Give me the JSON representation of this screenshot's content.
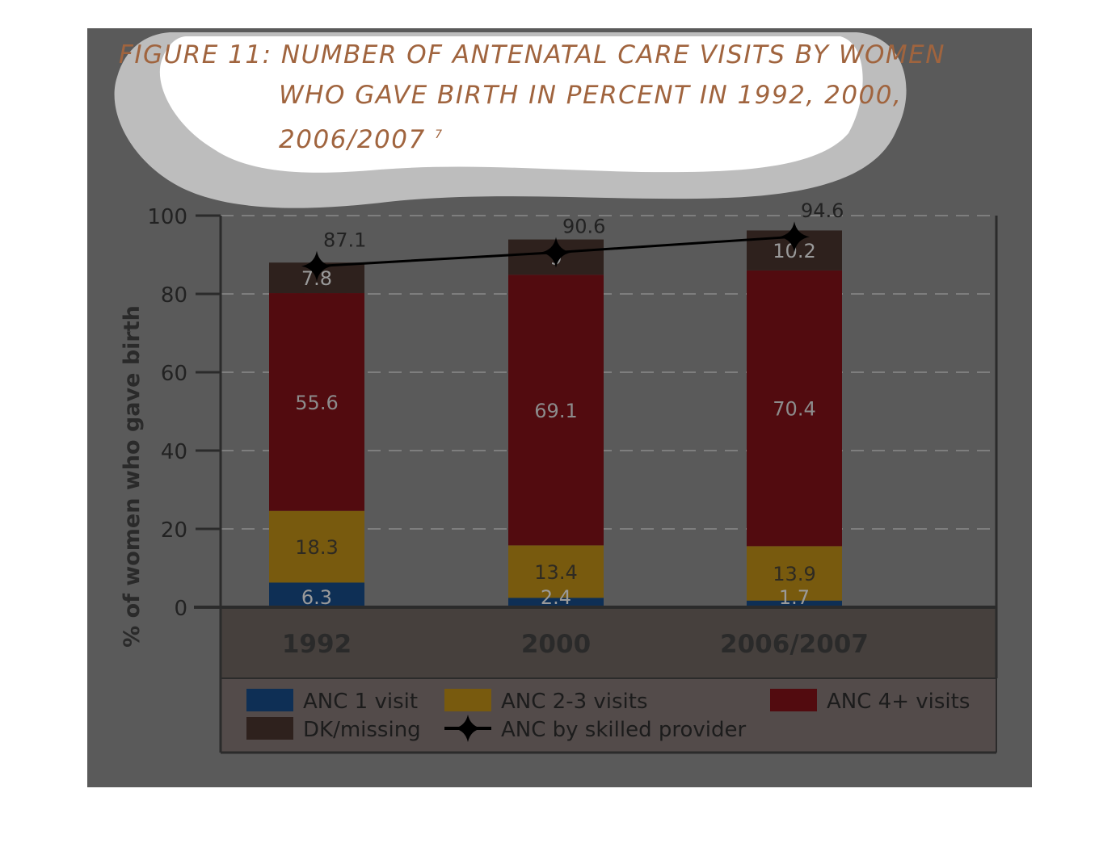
{
  "title": {
    "line1": "FIGURE 11: NUMBER OF ANTENATAL CARE VISITS  BY WOMEN",
    "line2": "WHO GAVE BIRTH IN PERCENT IN 1992, 2000,",
    "line3": "2006/2007",
    "footnote": "7"
  },
  "chart_data": {
    "type": "bar",
    "stacked": true,
    "categories": [
      "1992",
      "2000",
      "2006/2007"
    ],
    "ylabel": "% of women who gave birth",
    "ylim": [
      0,
      100
    ],
    "yticks": [
      "0",
      "20",
      "40",
      "60",
      "80",
      "100"
    ],
    "grid": true,
    "series": [
      {
        "name": "ANC 1 visit",
        "color": "#0e2f55",
        "label_color": "#9a9a9a",
        "values": [
          6.3,
          2.4,
          1.7
        ],
        "labels": [
          "6.3",
          "2.4",
          "1.7"
        ]
      },
      {
        "name": "ANC 2-3 visits",
        "color": "#785a0e",
        "label_color": "#2e2a22",
        "values": [
          18.3,
          13.4,
          13.9
        ],
        "labels": [
          "18.3",
          "13.4",
          "13.9"
        ]
      },
      {
        "name": "ANC 4+ visits",
        "color": "#520b0f",
        "label_color": "#8c8c8c",
        "values": [
          55.6,
          69.1,
          70.4
        ],
        "labels": [
          "55.6",
          "69.1",
          "70.4"
        ]
      },
      {
        "name": "DK/missing",
        "color": "#2e211d",
        "label_color": "#9a9a9a",
        "values": [
          7.8,
          9,
          10.2
        ],
        "labels": [
          "7.8",
          "9",
          "10.2"
        ]
      }
    ],
    "line_series": {
      "name": "ANC by skilled provider",
      "color": "#000000",
      "values": [
        87.1,
        90.6,
        94.6
      ],
      "labels": [
        "87.1",
        "90.6",
        "94.6"
      ]
    },
    "legend": {
      "position": "bottom",
      "rows": [
        [
          "ANC 1 visit",
          "ANC 2-3 visits",
          "ANC 4+ visits"
        ],
        [
          "DK/missing",
          "ANC by skilled provider"
        ]
      ]
    }
  }
}
